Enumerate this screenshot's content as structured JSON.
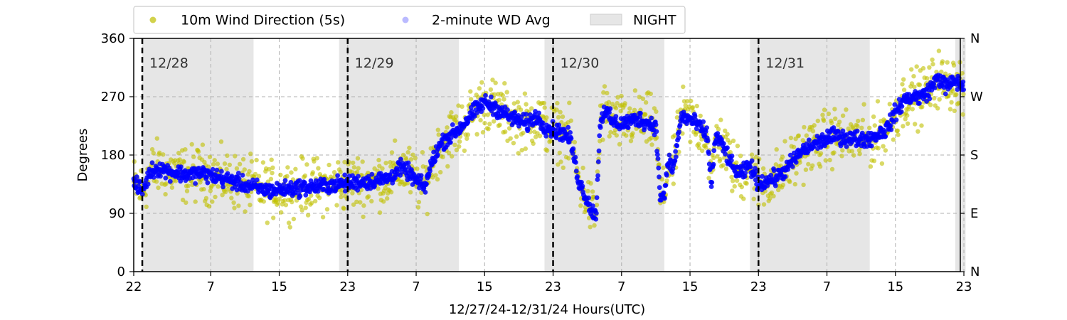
{
  "chart_data": {
    "type": "scatter",
    "xlabel": "12/27/24-12/31/24  Hours(UTC)",
    "ylabel": "Degrees",
    "ylim": [
      0,
      360
    ],
    "yticks": [
      0,
      90,
      180,
      270,
      360
    ],
    "yticks_right": [
      "N",
      "E",
      "S",
      "W",
      "N"
    ],
    "xlim": [
      0,
      97.2
    ],
    "xticks": [
      {
        "x": 0,
        "label": "22"
      },
      {
        "x": 9,
        "label": "7"
      },
      {
        "x": 17,
        "label": "15"
      },
      {
        "x": 25,
        "label": "23"
      },
      {
        "x": 33,
        "label": "7"
      },
      {
        "x": 41,
        "label": "15"
      },
      {
        "x": 49,
        "label": "23"
      },
      {
        "x": 57,
        "label": "7"
      },
      {
        "x": 65,
        "label": "15"
      },
      {
        "x": 73,
        "label": "23"
      },
      {
        "x": 81,
        "label": "7"
      },
      {
        "x": 89,
        "label": "15"
      },
      {
        "x": 97,
        "label": "23"
      }
    ],
    "grid": true,
    "legend_position": "top",
    "day_markers": [
      {
        "x": 1,
        "label": "12/28"
      },
      {
        "x": 25,
        "label": "12/29"
      },
      {
        "x": 49,
        "label": "12/30"
      },
      {
        "x": 73,
        "label": "12/31"
      }
    ],
    "night_periods": [
      [
        1,
        14
      ],
      [
        24,
        38
      ],
      [
        48,
        62
      ],
      [
        72,
        86
      ],
      [
        96,
        97.2
      ]
    ],
    "series": [
      {
        "name": "10m Wind Direction (5s)",
        "color": "#bfbf00",
        "x": [
          0,
          1,
          2,
          3,
          4,
          6,
          8,
          10,
          12,
          14,
          16,
          18,
          20,
          22,
          24,
          26,
          28,
          30,
          31,
          32,
          33,
          34,
          35,
          36,
          38,
          40,
          41,
          42,
          44,
          46,
          47,
          48,
          49,
          50,
          51,
          52,
          53,
          53.5,
          54,
          54.5,
          55,
          56,
          57,
          58,
          59,
          60,
          61,
          61.5,
          62,
          62.5,
          63,
          64,
          65,
          66,
          67,
          67.5,
          68,
          69,
          70,
          71,
          72,
          73,
          74,
          75,
          76,
          78,
          80,
          82,
          84,
          86,
          88,
          89,
          90,
          91,
          92,
          93,
          94,
          95,
          96,
          97
        ],
        "y": [
          135,
          125,
          155,
          160,
          155,
          150,
          152,
          145,
          138,
          130,
          125,
          128,
          130,
          132,
          135,
          138,
          140,
          145,
          160,
          155,
          140,
          130,
          175,
          200,
          220,
          250,
          262,
          255,
          238,
          228,
          240,
          225,
          218,
          215,
          205,
          140,
          110,
          95,
          85,
          230,
          250,
          230,
          228,
          232,
          236,
          230,
          225,
          118,
          115,
          175,
          155,
          240,
          235,
          225,
          210,
          135,
          210,
          190,
          160,
          150,
          165,
          135,
          140,
          145,
          155,
          185,
          200,
          210,
          205,
          205,
          220,
          245,
          265,
          270,
          270,
          280,
          300,
          285,
          295,
          285
        ]
      },
      {
        "name": "2-minute WD Avg",
        "color": "#0000ff",
        "x": [
          0,
          1,
          2,
          3,
          4,
          6,
          8,
          10,
          12,
          14,
          16,
          18,
          20,
          22,
          24,
          26,
          28,
          30,
          31,
          32,
          33,
          34,
          35,
          36,
          38,
          40,
          41,
          42,
          44,
          46,
          47,
          48,
          49,
          50,
          51,
          52,
          53,
          53.5,
          54,
          54.5,
          55,
          56,
          57,
          58,
          59,
          60,
          61,
          61.5,
          62,
          62.5,
          63,
          64,
          65,
          66,
          67,
          67.5,
          68,
          69,
          70,
          71,
          72,
          73,
          74,
          75,
          76,
          78,
          80,
          82,
          84,
          86,
          88,
          89,
          90,
          91,
          92,
          93,
          94,
          95,
          96,
          97
        ],
        "y": [
          135,
          125,
          155,
          160,
          155,
          150,
          152,
          145,
          138,
          130,
          125,
          128,
          130,
          132,
          135,
          138,
          140,
          145,
          160,
          155,
          140,
          130,
          175,
          200,
          220,
          250,
          262,
          255,
          238,
          228,
          240,
          225,
          218,
          215,
          205,
          140,
          110,
          95,
          85,
          230,
          250,
          230,
          228,
          232,
          236,
          230,
          225,
          118,
          115,
          175,
          155,
          240,
          235,
          225,
          210,
          135,
          210,
          190,
          160,
          150,
          165,
          135,
          140,
          145,
          155,
          185,
          200,
          210,
          205,
          205,
          220,
          245,
          265,
          270,
          270,
          280,
          300,
          285,
          295,
          285
        ]
      }
    ],
    "night_legend": "NIGHT",
    "night_color": "#e6e6e6"
  }
}
